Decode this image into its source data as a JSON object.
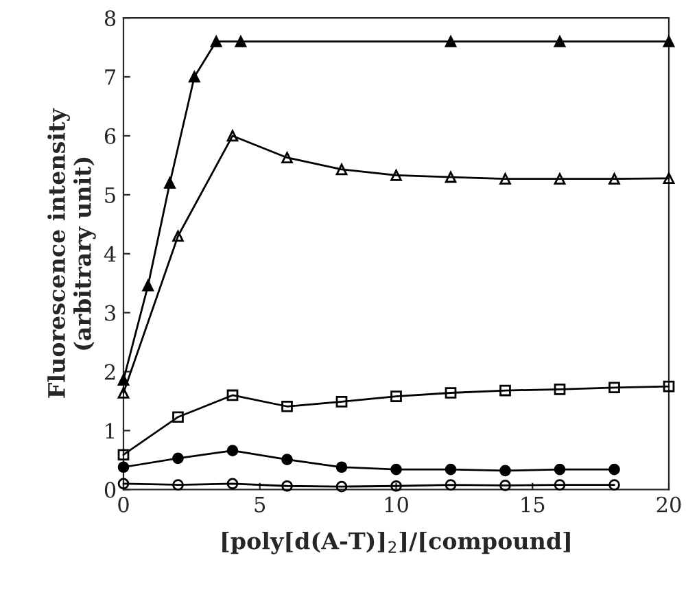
{
  "chart_data": {
    "type": "line",
    "xlabel": "[poly[d(A-T)]$_{2}$]/[compound]",
    "ylabel": "Fluorescence intensity\n(arbitrary unit)",
    "xlim": [
      0,
      20
    ],
    "xticks": [
      0,
      5,
      10,
      15,
      20
    ],
    "ylim": [
      0,
      8
    ],
    "yticks": [
      0,
      1,
      2,
      3,
      4,
      5,
      6,
      7,
      8
    ],
    "grid": false,
    "legend": false,
    "series": [
      {
        "color": "#000000",
        "marker": "triangle",
        "x": [
          0,
          0.9,
          1.7,
          2.6,
          3.4,
          4.3,
          12,
          16,
          20
        ],
        "values": [
          1.86,
          3.46,
          5.2,
          7.0,
          7.6,
          7.6,
          7.6,
          7.6,
          7.6
        ]
      },
      {
        "color": "#000000",
        "marker": "triangle",
        "x": [
          0,
          2,
          4,
          6,
          8,
          10,
          12,
          14,
          16,
          18,
          20
        ],
        "values": [
          1.64,
          4.3,
          6.0,
          5.63,
          5.43,
          5.33,
          5.3,
          5.27,
          5.27,
          5.27,
          5.28
        ]
      },
      {
        "color": "#000000",
        "marker": "square",
        "x": [
          0,
          2,
          4,
          6,
          8,
          10,
          12,
          14,
          16,
          18,
          20
        ],
        "values": [
          0.59,
          1.23,
          1.6,
          1.41,
          1.49,
          1.58,
          1.64,
          1.68,
          1.7,
          1.73,
          1.75
        ]
      },
      {
        "color": "#000000",
        "marker": "circle",
        "x": [
          0,
          2,
          4,
          6,
          8,
          10,
          12,
          14,
          16,
          18
        ],
        "values": [
          0.38,
          0.53,
          0.66,
          0.51,
          0.38,
          0.34,
          0.34,
          0.32,
          0.34,
          0.34
        ]
      },
      {
        "color": "#000000",
        "marker": "circle",
        "x": [
          0,
          2,
          4,
          6,
          8,
          10,
          12,
          14,
          16,
          18
        ],
        "values": [
          0.1,
          0.08,
          0.1,
          0.06,
          0.05,
          0.06,
          0.08,
          0.07,
          0.08,
          0.08
        ]
      }
    ]
  }
}
